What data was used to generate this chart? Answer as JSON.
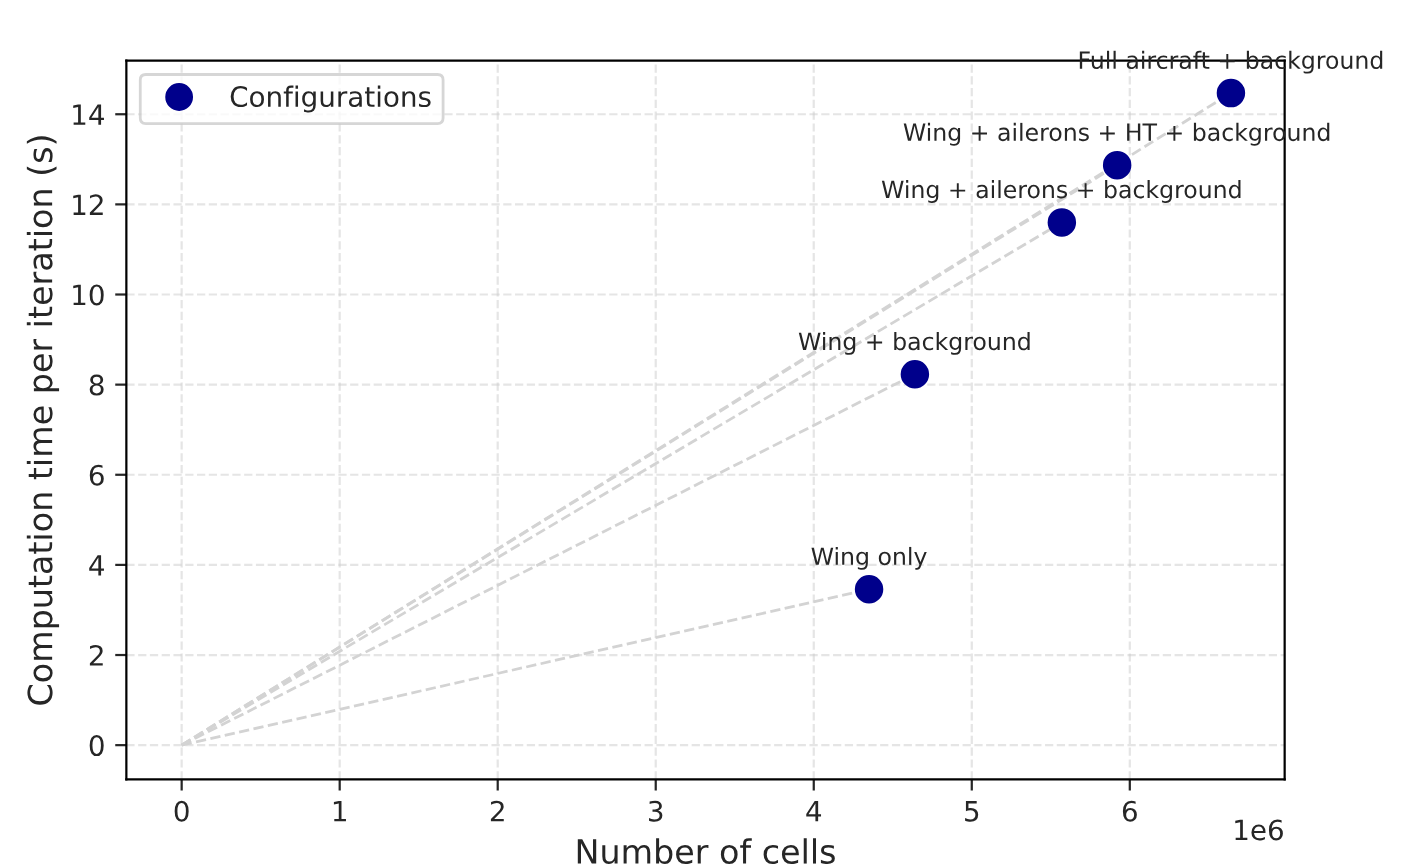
{
  "chart_data": {
    "type": "scatter",
    "xlabel": "Number of cells",
    "ylabel": "Computation time per iteration (s)",
    "xlim": [
      -0.35,
      6.98
    ],
    "ylim": [
      -0.76,
      15.19
    ],
    "xticks": [
      0,
      1,
      2,
      3,
      4,
      5,
      6
    ],
    "yticks": [
      0,
      2,
      4,
      6,
      8,
      10,
      12,
      14
    ],
    "grid": true,
    "legend": "top left",
    "marker": "circle",
    "series": [
      {
        "type": "line",
        "color": "#d3d3d3",
        "line_style": "dashed",
        "marker": "none",
        "x": [
          0,
          4.35
        ],
        "values": [
          0,
          3.46
        ]
      },
      {
        "type": "line",
        "color": "#d3d3d3",
        "line_style": "dashed",
        "marker": "none",
        "x": [
          0,
          4.64
        ],
        "values": [
          0,
          8.23
        ]
      },
      {
        "type": "line",
        "color": "#d3d3d3",
        "line_style": "dashed",
        "marker": "none",
        "x": [
          0,
          5.57
        ],
        "values": [
          0,
          11.6
        ]
      },
      {
        "type": "line",
        "color": "#d3d3d3",
        "line_style": "dashed",
        "marker": "none",
        "x": [
          0,
          5.92
        ],
        "values": [
          0,
          12.87
        ]
      },
      {
        "type": "line",
        "color": "#d3d3d3",
        "line_style": "dashed",
        "marker": "none",
        "x": [
          0,
          6.64
        ],
        "values": [
          0,
          14.47
        ]
      },
      {
        "name": "Configurations",
        "color": "#00008b",
        "x": [
          4.35,
          4.64,
          5.57,
          5.92,
          6.64
        ],
        "values": [
          3.46,
          8.23,
          11.6,
          12.87,
          14.47
        ]
      }
    ],
    "annotations": [
      {
        "text": "Wing only",
        "x": 4.35,
        "y": 3.46
      },
      {
        "text": "Wing + background",
        "x": 4.64,
        "y": 8.23
      },
      {
        "text": "Wing + ailerons + background",
        "x": 5.57,
        "y": 11.6
      },
      {
        "text": "Wing + ailerons + HT + background",
        "x": 5.92,
        "y": 12.87
      },
      {
        "text": "Full aircraft + background",
        "x": 6.64,
        "y": 14.47
      },
      "1e6"
    ]
  }
}
